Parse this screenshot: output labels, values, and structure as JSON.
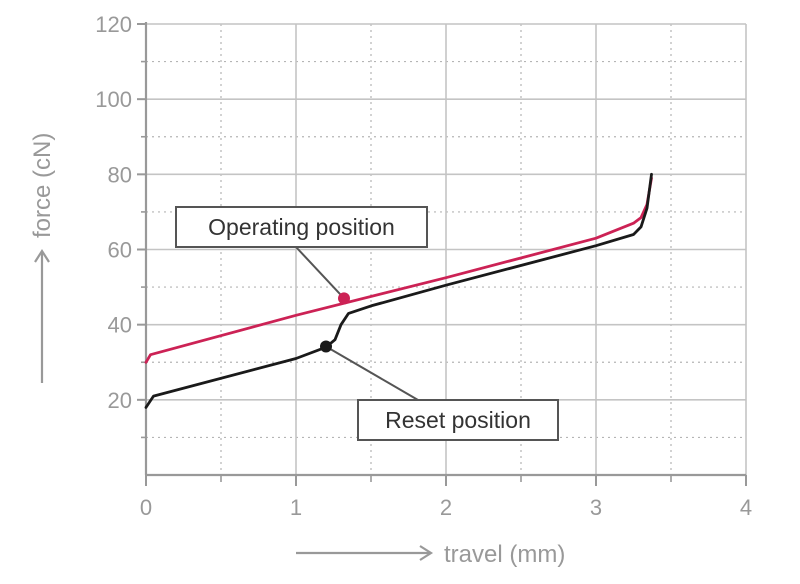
{
  "chart_data": {
    "type": "line",
    "xlabel": "travel (mm)",
    "ylabel": "force (cN)",
    "xlim": [
      0,
      4
    ],
    "ylim": [
      0,
      120
    ],
    "x_ticks": [
      0,
      1,
      2,
      3,
      4
    ],
    "y_ticks": [
      20,
      40,
      60,
      80,
      100,
      120
    ],
    "grid": true,
    "series": [
      {
        "color": "#cc2255",
        "points": [
          [
            0,
            30
          ],
          [
            0.03,
            32
          ],
          [
            1.0,
            42.5
          ],
          [
            2.0,
            52.5
          ],
          [
            3.0,
            63
          ],
          [
            3.25,
            67
          ],
          [
            3.3,
            68.5
          ],
          [
            3.34,
            72
          ],
          [
            3.37,
            79
          ]
        ]
      },
      {
        "color": "#1a1a1a",
        "points": [
          [
            0,
            18
          ],
          [
            0.05,
            21
          ],
          [
            1.0,
            31
          ],
          [
            1.2,
            34
          ],
          [
            1.26,
            36
          ],
          [
            1.3,
            40
          ],
          [
            1.35,
            43
          ],
          [
            1.5,
            45
          ],
          [
            2.0,
            50.5
          ],
          [
            3.0,
            61
          ],
          [
            3.25,
            64
          ],
          [
            3.3,
            66
          ],
          [
            3.34,
            71
          ],
          [
            3.37,
            80
          ]
        ]
      }
    ],
    "annotations": [
      {
        "text": "Operating position",
        "point": [
          1.32,
          47
        ],
        "color": "#cc2255"
      },
      {
        "text": "Reset position",
        "point": [
          1.2,
          34.2
        ],
        "color": "#1a1a1a"
      }
    ]
  }
}
